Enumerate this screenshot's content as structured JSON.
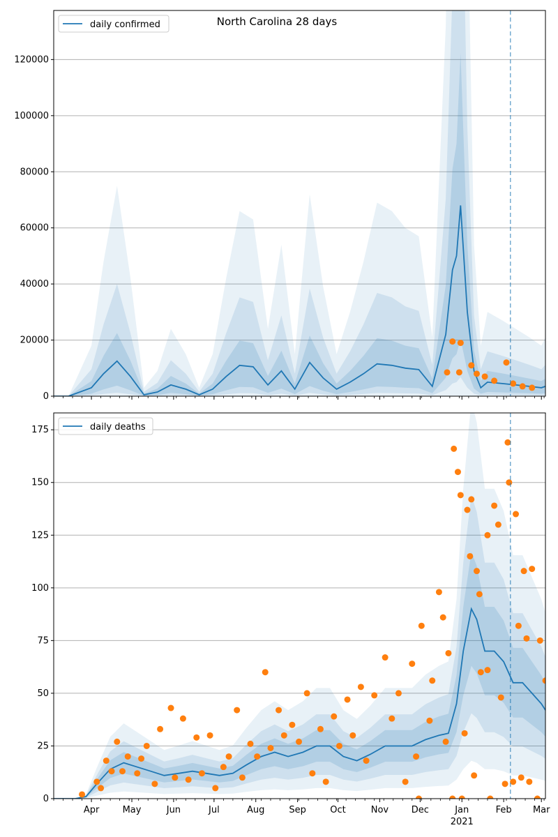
{
  "chart_data": [
    {
      "type": "line",
      "title": "North Carolina 28 days",
      "xlabel": "",
      "ylabel": "",
      "series": [
        {
          "name": "daily confirmed",
          "x": [
            "2020-03-01",
            "2020-03-15",
            "2020-04-01",
            "2020-04-10",
            "2020-04-20",
            "2020-04-30",
            "2020-05-10",
            "2020-05-20",
            "2020-05-30",
            "2020-06-10",
            "2020-06-20",
            "2020-06-30",
            "2020-07-10",
            "2020-07-20",
            "2020-07-30",
            "2020-08-10",
            "2020-08-20",
            "2020-08-30",
            "2020-09-10",
            "2020-09-20",
            "2020-09-30",
            "2020-10-10",
            "2020-10-20",
            "2020-10-30",
            "2020-11-10",
            "2020-11-20",
            "2020-11-30",
            "2020-12-10",
            "2020-12-20",
            "2020-12-25",
            "2020-12-28",
            "2020-12-31",
            "2021-01-05",
            "2021-01-10",
            "2021-01-15",
            "2021-01-20",
            "2021-01-31",
            "2021-02-10",
            "2021-02-20",
            "2021-03-01",
            "2021-03-04"
          ],
          "y": [
            0,
            0,
            3000,
            8000,
            12500,
            7000,
            500,
            1500,
            4000,
            2500,
            500,
            2500,
            7000,
            11000,
            10500,
            4000,
            9000,
            2500,
            12000,
            6500,
            2500,
            5000,
            8000,
            11500,
            11000,
            10000,
            9500,
            3500,
            22000,
            45000,
            50000,
            68000,
            30000,
            9000,
            3000,
            5000,
            4500,
            4000,
            3500,
            3000,
            3500
          ]
        }
      ],
      "scatter_points": [
        {
          "x": "2020-12-21",
          "y": 8500
        },
        {
          "x": "2020-12-25",
          "y": 19500
        },
        {
          "x": "2020-12-31",
          "y": 19000
        },
        {
          "x": "2020-12-30",
          "y": 8500
        },
        {
          "x": "2021-01-08",
          "y": 11000
        },
        {
          "x": "2021-01-12",
          "y": 8000
        },
        {
          "x": "2021-01-18",
          "y": 7000
        },
        {
          "x": "2021-01-25",
          "y": 5500
        },
        {
          "x": "2021-02-03",
          "y": 12000
        },
        {
          "x": "2021-02-08",
          "y": 4500
        },
        {
          "x": "2021-02-15",
          "y": 3500
        },
        {
          "x": "2021-02-22",
          "y": 3000
        }
      ],
      "ylim": [
        0,
        137500
      ],
      "yticks": [
        0,
        20000,
        40000,
        60000,
        80000,
        100000,
        120000
      ],
      "ytick_labels": [
        "0",
        "20000",
        "40000",
        "60000",
        "80000",
        "100000",
        "120000"
      ],
      "legend": "top-left",
      "grid": "horizontal",
      "vline_date": "2021-02-06"
    },
    {
      "type": "line",
      "title": "",
      "xlabel": "",
      "ylabel": "",
      "series": [
        {
          "name": "daily deaths",
          "x": [
            "2020-03-01",
            "2020-03-20",
            "2020-03-28",
            "2020-04-05",
            "2020-04-15",
            "2020-04-25",
            "2020-05-05",
            "2020-05-15",
            "2020-05-25",
            "2020-06-05",
            "2020-06-15",
            "2020-06-25",
            "2020-07-05",
            "2020-07-15",
            "2020-07-25",
            "2020-08-05",
            "2020-08-15",
            "2020-08-25",
            "2020-09-05",
            "2020-09-15",
            "2020-09-25",
            "2020-10-05",
            "2020-10-15",
            "2020-10-25",
            "2020-11-05",
            "2020-11-15",
            "2020-11-25",
            "2020-12-05",
            "2020-12-15",
            "2020-12-22",
            "2020-12-28",
            "2021-01-02",
            "2021-01-08",
            "2021-01-12",
            "2021-01-18",
            "2021-01-25",
            "2021-02-01",
            "2021-02-08",
            "2021-02-15",
            "2021-02-22",
            "2021-03-01",
            "2021-03-04"
          ],
          "y": [
            0,
            0,
            1,
            7,
            14,
            17,
            15,
            13,
            11,
            12,
            13,
            12,
            11,
            12,
            16,
            20,
            22,
            20,
            22,
            25,
            25,
            20,
            18,
            21,
            25,
            25,
            25,
            28,
            30,
            31,
            45,
            70,
            90,
            85,
            70,
            70,
            65,
            55,
            55,
            50,
            45,
            42
          ]
        }
      ],
      "scatter_points": [
        {
          "x": "2020-03-25",
          "y": 2
        },
        {
          "x": "2020-04-05",
          "y": 8
        },
        {
          "x": "2020-04-12",
          "y": 18
        },
        {
          "x": "2020-04-20",
          "y": 27
        },
        {
          "x": "2020-04-28",
          "y": 20
        },
        {
          "x": "2020-05-05",
          "y": 12
        },
        {
          "x": "2020-05-12",
          "y": 25
        },
        {
          "x": "2020-05-22",
          "y": 33
        },
        {
          "x": "2020-05-30",
          "y": 43
        },
        {
          "x": "2020-06-08",
          "y": 38
        },
        {
          "x": "2020-06-18",
          "y": 29
        },
        {
          "x": "2020-06-28",
          "y": 30
        },
        {
          "x": "2020-07-08",
          "y": 15
        },
        {
          "x": "2020-07-18",
          "y": 42
        },
        {
          "x": "2020-07-28",
          "y": 26
        },
        {
          "x": "2020-08-08",
          "y": 60
        },
        {
          "x": "2020-08-18",
          "y": 42
        },
        {
          "x": "2020-08-28",
          "y": 35
        },
        {
          "x": "2020-09-08",
          "y": 50
        },
        {
          "x": "2020-09-18",
          "y": 33
        },
        {
          "x": "2020-09-28",
          "y": 39
        },
        {
          "x": "2020-10-08",
          "y": 47
        },
        {
          "x": "2020-10-18",
          "y": 53
        },
        {
          "x": "2020-10-28",
          "y": 49
        },
        {
          "x": "2020-11-05",
          "y": 67
        },
        {
          "x": "2020-11-15",
          "y": 50
        },
        {
          "x": "2020-11-25",
          "y": 64
        },
        {
          "x": "2020-12-02",
          "y": 82
        },
        {
          "x": "2020-12-10",
          "y": 56
        },
        {
          "x": "2020-12-15",
          "y": 98
        },
        {
          "x": "2020-12-18",
          "y": 86
        },
        {
          "x": "2020-12-22",
          "y": 69
        },
        {
          "x": "2020-12-26",
          "y": 166
        },
        {
          "x": "2020-12-29",
          "y": 155
        },
        {
          "x": "2020-12-31",
          "y": 144
        },
        {
          "x": "2021-01-05",
          "y": 137
        },
        {
          "x": "2021-01-08",
          "y": 142
        },
        {
          "x": "2021-01-12",
          "y": 108
        },
        {
          "x": "2021-01-20",
          "y": 125
        },
        {
          "x": "2021-01-25",
          "y": 139
        },
        {
          "x": "2021-01-28",
          "y": 130
        },
        {
          "x": "2021-02-04",
          "y": 169
        },
        {
          "x": "2021-02-05",
          "y": 150
        },
        {
          "x": "2021-02-10",
          "y": 135
        },
        {
          "x": "2021-02-16",
          "y": 108
        },
        {
          "x": "2021-02-22",
          "y": 109
        },
        {
          "x": "2021-02-28",
          "y": 75
        },
        {
          "x": "2021-03-04",
          "y": 56
        },
        {
          "x": "2021-02-18",
          "y": 76
        },
        {
          "x": "2021-02-12",
          "y": 82
        },
        {
          "x": "2021-01-30",
          "y": 48
        },
        {
          "x": "2021-01-15",
          "y": 60
        },
        {
          "x": "2021-01-03",
          "y": 31
        },
        {
          "x": "2020-12-20",
          "y": 27
        },
        {
          "x": "2020-12-08",
          "y": 37
        },
        {
          "x": "2020-11-28",
          "y": 20
        },
        {
          "x": "2020-11-20",
          "y": 8
        },
        {
          "x": "2020-11-10",
          "y": 38
        },
        {
          "x": "2020-10-22",
          "y": 18
        },
        {
          "x": "2020-10-12",
          "y": 30
        },
        {
          "x": "2020-10-02",
          "y": 25
        },
        {
          "x": "2020-09-22",
          "y": 8
        },
        {
          "x": "2020-09-12",
          "y": 12
        },
        {
          "x": "2020-09-02",
          "y": 27
        },
        {
          "x": "2020-08-22",
          "y": 30
        },
        {
          "x": "2020-08-12",
          "y": 24
        },
        {
          "x": "2020-08-02",
          "y": 20
        },
        {
          "x": "2020-07-22",
          "y": 10
        },
        {
          "x": "2020-07-12",
          "y": 20
        },
        {
          "x": "2020-07-02",
          "y": 5
        },
        {
          "x": "2020-06-22",
          "y": 12
        },
        {
          "x": "2020-06-12",
          "y": 9
        },
        {
          "x": "2020-06-02",
          "y": 10
        },
        {
          "x": "2020-05-18",
          "y": 7
        },
        {
          "x": "2020-05-08",
          "y": 19
        },
        {
          "x": "2020-04-24",
          "y": 13
        },
        {
          "x": "2020-04-16",
          "y": 13
        },
        {
          "x": "2020-04-08",
          "y": 5
        },
        {
          "x": "2021-01-01",
          "y": 0
        },
        {
          "x": "2020-12-25",
          "y": 0
        },
        {
          "x": "2020-11-30",
          "y": 0
        },
        {
          "x": "2021-02-02",
          "y": 7
        },
        {
          "x": "2021-02-08",
          "y": 8
        },
        {
          "x": "2021-02-14",
          "y": 10
        },
        {
          "x": "2021-02-20",
          "y": 8
        },
        {
          "x": "2021-02-26",
          "y": 0
        },
        {
          "x": "2021-01-22",
          "y": 0
        },
        {
          "x": "2021-01-10",
          "y": 11
        },
        {
          "x": "2021-01-20",
          "y": 61
        },
        {
          "x": "2021-01-14",
          "y": 97
        },
        {
          "x": "2021-01-07",
          "y": 115
        }
      ],
      "ylim": [
        0,
        183
      ],
      "yticks": [
        0,
        25,
        50,
        75,
        100,
        125,
        150,
        175
      ],
      "ytick_labels": [
        "0",
        "25",
        "50",
        "75",
        "100",
        "125",
        "150",
        "175"
      ],
      "legend": "top-left",
      "grid": "horizontal",
      "vline_date": "2021-02-06"
    }
  ],
  "x_axis": {
    "tick_labels": [
      "Apr",
      "May",
      "Jun",
      "Jul",
      "Aug",
      "Sep",
      "Oct",
      "Nov",
      "Dec",
      "Jan",
      "Feb",
      "Mar"
    ],
    "tick_dates": [
      "2020-04-01",
      "2020-05-01",
      "2020-06-01",
      "2020-07-01",
      "2020-08-01",
      "2020-09-01",
      "2020-10-01",
      "2020-11-01",
      "2020-12-01",
      "2021-01-01",
      "2021-02-01",
      "2021-03-01"
    ],
    "year_label": "2021",
    "start": "2020-03-04",
    "end": "2021-03-04"
  },
  "colors": {
    "line": "#1f77b4",
    "points": "#ff7f0e",
    "band": "#1f77b4",
    "grid": "#b0b0b0"
  }
}
